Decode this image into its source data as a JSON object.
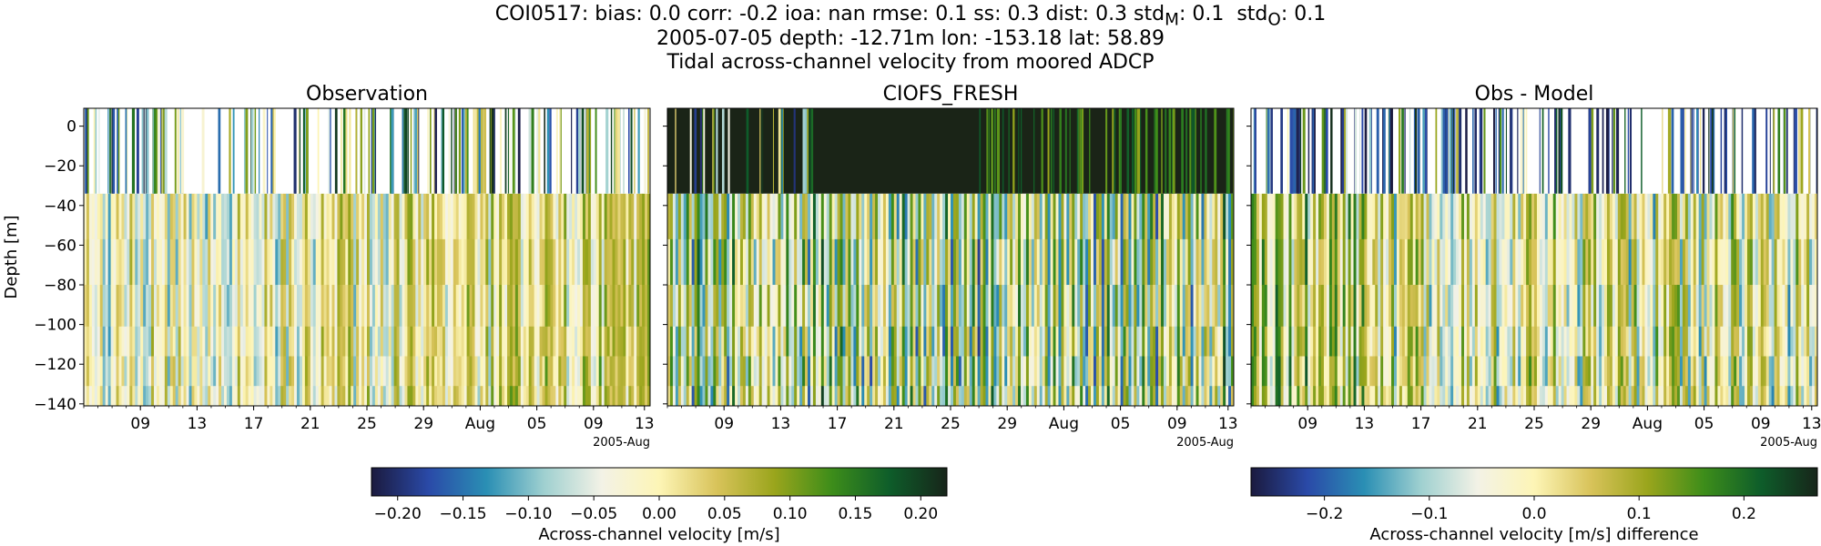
{
  "figure": {
    "title_line1": "COI0517: bias: 0.0  corr: -0.2  ioa: nan  rmse: 0.1  ss: 0.3  dist: 0.3  std",
    "title_line1_subscripts": [
      {
        "base": "std",
        "sub": "M",
        "value": ": 0.1"
      },
      {
        "base": "std",
        "sub": "O",
        "value": ": 0.1"
      }
    ],
    "title_line2": "2005-07-05 depth: -12.71m lon: -153.18 lat: 58.89",
    "title_line3": "Tidal across-channel velocity from moored ADCP"
  },
  "colors": {
    "colormap_balance_like": [
      "#1b1a3e",
      "#2a4aa8",
      "#2a8fb4",
      "#9fd0d0",
      "#f3f2e6",
      "#fdf5b6",
      "#d8c35a",
      "#9aa51c",
      "#3d8d1a",
      "#0e5d2a",
      "#17251a"
    ]
  },
  "chart_data": [
    {
      "type": "heatmap",
      "title": "Observation",
      "ylabel": "Depth [m]",
      "ylim": [
        -141,
        9
      ],
      "yticks": [
        0,
        -20,
        -40,
        -60,
        -80,
        -100,
        -120,
        -140
      ],
      "xtick_labels": [
        "09",
        "13",
        "17",
        "21",
        "25",
        "29",
        "Aug",
        "05",
        "09",
        "13"
      ],
      "x_offset_label": "2005-Aug",
      "x_range": [
        "2005-07-05",
        "2005-08-14"
      ],
      "top_layer_depth": [
        -34,
        9
      ],
      "top_layer_sparse": true,
      "bottom_layer_depth": [
        -141,
        -34
      ],
      "clim": [
        -0.22,
        0.22
      ]
    },
    {
      "type": "heatmap",
      "title": "CIOFS_FRESH",
      "ylim": [
        -141,
        9
      ],
      "xtick_labels": [
        "09",
        "13",
        "17",
        "21",
        "25",
        "29",
        "Aug",
        "05",
        "09",
        "13"
      ],
      "x_offset_label": "2005-Aug",
      "x_range": [
        "2005-07-05",
        "2005-08-14"
      ],
      "top_layer_depth": [
        -34,
        9
      ],
      "top_layer_sparse": false,
      "bottom_layer_depth": [
        -141,
        -34
      ],
      "clim": [
        -0.22,
        0.22
      ]
    },
    {
      "type": "heatmap",
      "title": "Obs - Model",
      "ylim": [
        -141,
        9
      ],
      "xtick_labels": [
        "09",
        "13",
        "17",
        "21",
        "25",
        "29",
        "Aug",
        "05",
        "09",
        "13"
      ],
      "x_offset_label": "2005-Aug",
      "x_range": [
        "2005-07-05",
        "2005-08-14"
      ],
      "top_layer_depth": [
        -34,
        9
      ],
      "top_layer_sparse": true,
      "bottom_layer_depth": [
        -141,
        -34
      ],
      "clim": [
        -0.27,
        0.27
      ]
    }
  ],
  "colorbars": [
    {
      "label": "Across-channel velocity [m/s]",
      "range": [
        -0.22,
        0.22
      ],
      "ticks": [
        -0.2,
        -0.15,
        -0.1,
        -0.05,
        0.0,
        0.05,
        0.1,
        0.15,
        0.2
      ],
      "tick_labels": [
        "−0.20",
        "−0.15",
        "−0.10",
        "−0.05",
        "0.00",
        "0.05",
        "0.10",
        "0.15",
        "0.20"
      ]
    },
    {
      "label": "Across-channel velocity [m/s] difference",
      "range": [
        -0.27,
        0.27
      ],
      "ticks": [
        -0.2,
        -0.1,
        0.0,
        0.1,
        0.2
      ],
      "tick_labels": [
        "−0.2",
        "−0.1",
        "0.0",
        "0.1",
        "0.2"
      ]
    }
  ]
}
